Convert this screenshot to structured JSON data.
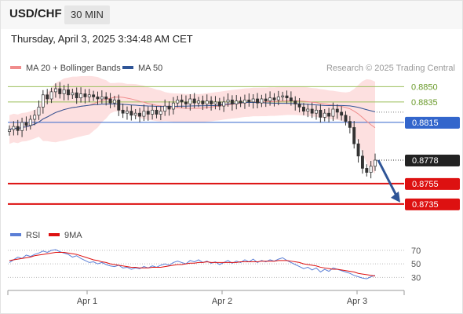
{
  "header": {
    "symbol": "USD/CHF",
    "interval": "30 MIN",
    "datetime": "Thursday, April 3, 2025 3:34:48 AM CET",
    "credit": "Research © 2025 Trading Central"
  },
  "legend": {
    "ma20": "MA 20 + Bollinger Bands",
    "ma50": "MA 50",
    "rsi": "RSI",
    "rsi_ma": "9MA"
  },
  "colors": {
    "ma20": "#f08c8c",
    "bollinger_fill": "#fde0e0",
    "ma50": "#2f5597",
    "up_candle": "#ffffff",
    "down_candle": "#333333",
    "resistance": "#9bbf5b",
    "pivot": "#3366cc",
    "support": "#dd1111",
    "arrow": "#2f5597",
    "rsi": "#5b7fd6",
    "rsi_ma": "#dd1111"
  },
  "chart_data": [
    {
      "type": "candlestick",
      "title": "USD/CHF",
      "interval": "30 MIN",
      "x_labels": [
        "Apr 1",
        "Apr 2",
        "Apr 3"
      ],
      "ylim": [
        0.8718,
        0.8858
      ],
      "levels": [
        {
          "value": 0.885,
          "label": "0.8850",
          "kind": "resistance"
        },
        {
          "value": 0.8835,
          "label": "0.8835",
          "kind": "resistance"
        },
        {
          "value": 0.8815,
          "label": "0.8815",
          "kind": "pivot"
        },
        {
          "value": 0.8755,
          "label": "0.8755",
          "kind": "support"
        },
        {
          "value": 0.8735,
          "label": "0.8735",
          "kind": "support"
        }
      ],
      "last_price": {
        "value": 0.8778,
        "label": "0.8778"
      },
      "forecast_arrow": {
        "from": 0.8778,
        "to": 0.8735,
        "direction": "down"
      },
      "close_series": [
        0.8808,
        0.8811,
        0.8807,
        0.8815,
        0.8812,
        0.8818,
        0.8822,
        0.883,
        0.8842,
        0.8838,
        0.8845,
        0.8848,
        0.8843,
        0.8847,
        0.8842,
        0.8844,
        0.8839,
        0.8843,
        0.884,
        0.8842,
        0.884,
        0.8838,
        0.884,
        0.8838,
        0.8834,
        0.8837,
        0.8827,
        0.8824,
        0.8826,
        0.8822,
        0.8824,
        0.8821,
        0.8826,
        0.8823,
        0.8827,
        0.8823,
        0.8826,
        0.8831,
        0.8828,
        0.8834,
        0.8837,
        0.8835,
        0.8833,
        0.8838,
        0.8834,
        0.8836,
        0.8833,
        0.8836,
        0.8833,
        0.8835,
        0.8831,
        0.8835,
        0.8837,
        0.8833,
        0.8836,
        0.8834,
        0.8837,
        0.8835,
        0.8838,
        0.8834,
        0.8838,
        0.8836,
        0.8839,
        0.8837,
        0.884,
        0.8841,
        0.8839,
        0.8836,
        0.8833,
        0.883,
        0.8826,
        0.8828,
        0.8824,
        0.8827,
        0.882,
        0.8824,
        0.8821,
        0.8828,
        0.8825,
        0.8822,
        0.8816,
        0.881,
        0.8794,
        0.8782,
        0.877,
        0.8766,
        0.8772,
        0.8778
      ]
    },
    {
      "type": "line",
      "title": "RSI",
      "x_labels": [
        "Apr 1",
        "Apr 2",
        "Apr 3"
      ],
      "ylim": [
        20,
        78
      ],
      "y_ticks": [
        70,
        50,
        30
      ],
      "series": [
        {
          "name": "RSI",
          "values": [
            52,
            56,
            60,
            58,
            63,
            61,
            64,
            66,
            69,
            67,
            70,
            71,
            68,
            66,
            64,
            60,
            62,
            58,
            55,
            52,
            53,
            50,
            52,
            49,
            47,
            46,
            48,
            44,
            45,
            42,
            44,
            43,
            46,
            44,
            47,
            45,
            48,
            50,
            48,
            52,
            54,
            52,
            50,
            55,
            53,
            56,
            52,
            54,
            51,
            53,
            49,
            52,
            55,
            51,
            54,
            52,
            56,
            53,
            57,
            52,
            55,
            53,
            56,
            54,
            57,
            59,
            55,
            52,
            49,
            46,
            43,
            45,
            41,
            44,
            38,
            42,
            39,
            44,
            42,
            40,
            38,
            36,
            33,
            31,
            29,
            28,
            31,
            33
          ]
        },
        {
          "name": "9MA",
          "values": [
            55,
            56,
            57,
            58,
            59,
            60,
            62,
            63,
            64,
            65,
            66,
            67,
            67,
            67,
            66,
            65,
            64,
            62,
            60,
            58,
            56,
            55,
            53,
            52,
            50,
            49,
            48,
            47,
            46,
            45,
            45,
            44,
            44,
            44,
            45,
            45,
            45,
            46,
            47,
            48,
            49,
            49,
            50,
            51,
            51,
            52,
            52,
            53,
            52,
            52,
            52,
            52,
            52,
            52,
            52,
            53,
            53,
            53,
            53,
            53,
            54,
            54,
            54,
            54,
            55,
            55,
            55,
            54,
            53,
            52,
            50,
            49,
            48,
            47,
            45,
            44,
            43,
            42,
            42,
            41,
            40,
            39,
            38,
            36,
            35,
            34,
            33,
            32
          ]
        }
      ]
    }
  ]
}
